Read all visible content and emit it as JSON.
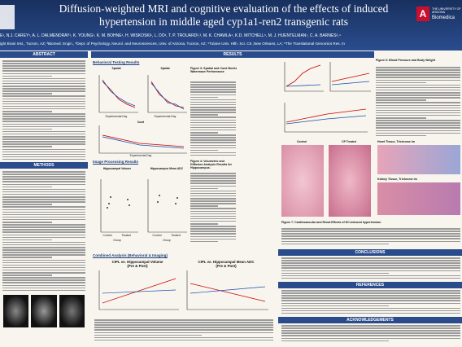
{
  "header": {
    "title_line1": "Diffusion-weighted MRI and cognitive evaluation of the effects of induced",
    "title_line2": "hypertension in middle aged cyp1a1-ren2 transgenic rats",
    "authors": "E¹, N.J. CAREY¹, A. L. DALMENDRAY¹, K. YOUNG¹, K. M. BOHNE¹, H. WISKOSKI¹, L. DO¹, T. P. TROUARD²,³, M. K. CHAWLA⁴, K.D. MITCHELL⁵, M. J. HUENTELMAN¹, C. A. BARNES²,⁴",
    "affiliations": "ight Brain Inst., Tucson, AZ; ²Biomed. Engin., ³Dept. of Psychology, Neurol. and Neurosciences, Univ. of Arizona, Tucson, AZ; ⁴Tulane Univ. Hlth. Sci. Ctr.,New Orleans, LA; ⁵The Translational Genomics Res. In",
    "logo_line1": "THE UNIVERSITY OF ARIZONA",
    "logo_line2": "Biomedica"
  },
  "sections": {
    "abstract": "ABSTRACT",
    "results": "RESULTS",
    "methods": "METHODS",
    "conclusions": "CONCLUSIONS",
    "references": "REFERENCES",
    "acknowledgements": "ACKNOWLEDGEMENTS"
  },
  "results": {
    "behavioral": "Behavioral Testing Results",
    "imaging": "Image Processing Results",
    "combined": "Combined Analysis (Behavioral & Imaging)",
    "chart_titles": [
      "Spatial",
      "Spatial",
      "Cued",
      "Hippocampal Volume",
      "Hippocampus Mean ADC",
      "CIPL vs. Hippocampal Volume",
      "CIPL vs. Hippocampal Mean ADC"
    ],
    "chart_subtitles": [
      "(Pre & Post)",
      "(Pre & Post)"
    ],
    "x_labels": [
      "Experimental Day",
      "Experimental Day",
      "Experimental Day",
      "Group",
      "Group"
    ],
    "groups": [
      "Control",
      "Treated",
      "Control",
      "Treated"
    ],
    "fig3": "Figure 3: Spatial and Cued Morris Watermaze Performance",
    "fig4": "Figure 4: Volumetric and Diffusion Analysis Results for Hippocampus."
  },
  "right": {
    "fig6": "Figure 6: Blood Pressure and Body Weight",
    "control": "Control",
    "treated": "CP Treated",
    "heart": "Heart Tissue, Trichrome Im",
    "kidney": "Kidney Tissue, Trichrome Im",
    "fig7": "Figure 7: Cardiovascular and Renal Effects of DC-induced hypertension"
  }
}
